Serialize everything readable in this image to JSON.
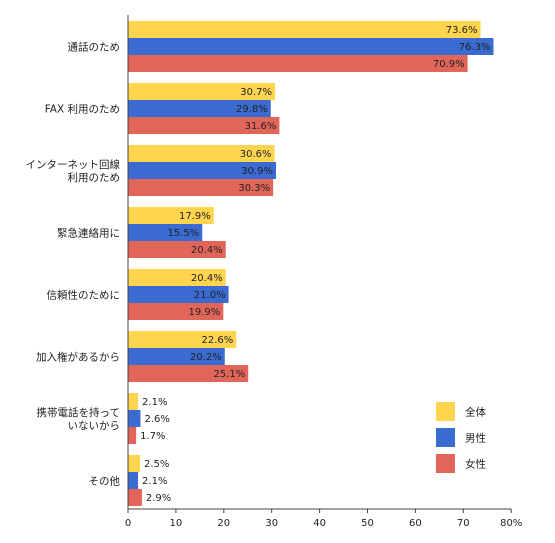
{
  "chart_data": {
    "type": "bar",
    "orientation": "horizontal",
    "categories": [
      [
        "通話のため"
      ],
      [
        "FAX 利用のため"
      ],
      [
        "インターネット回線",
        "利用のため"
      ],
      [
        "緊急連絡用に"
      ],
      [
        "信頼性のために"
      ],
      [
        "加入権があるから"
      ],
      [
        "携帯電話を持って",
        "いないから"
      ],
      [
        "その他"
      ]
    ],
    "series": [
      {
        "name": "全体",
        "color": "#FFD44F",
        "values": [
          73.6,
          30.7,
          30.6,
          17.9,
          20.4,
          22.6,
          2.1,
          2.5
        ],
        "labels": [
          "73.6%",
          "30.7%",
          "30.6%",
          "17.9%",
          "20.4%",
          "22.6%",
          "2.1%",
          "2.5%"
        ]
      },
      {
        "name": "男性",
        "color": "#3A6BD0",
        "values": [
          76.3,
          29.8,
          30.9,
          15.5,
          21.0,
          20.2,
          2.6,
          2.1
        ],
        "labels": [
          "76.3%",
          "29.8%",
          "30.9%",
          "15.5%",
          "21.0%",
          "20.2%",
          "2.6%",
          "2.1%"
        ]
      },
      {
        "name": "女性",
        "color": "#E2655A",
        "values": [
          70.9,
          31.6,
          30.3,
          20.4,
          19.9,
          25.1,
          1.7,
          2.9
        ],
        "labels": [
          "70.9%",
          "31.6%",
          "30.3%",
          "20.4%",
          "19.9%",
          "25.1%",
          "1.7%",
          "2.9%"
        ]
      }
    ],
    "xlim": [
      0,
      80
    ],
    "xticks": [
      "0",
      "10",
      "20",
      "30",
      "40",
      "50",
      "60",
      "70",
      "80%"
    ],
    "grid": false,
    "legend_position": "bottom-right"
  }
}
